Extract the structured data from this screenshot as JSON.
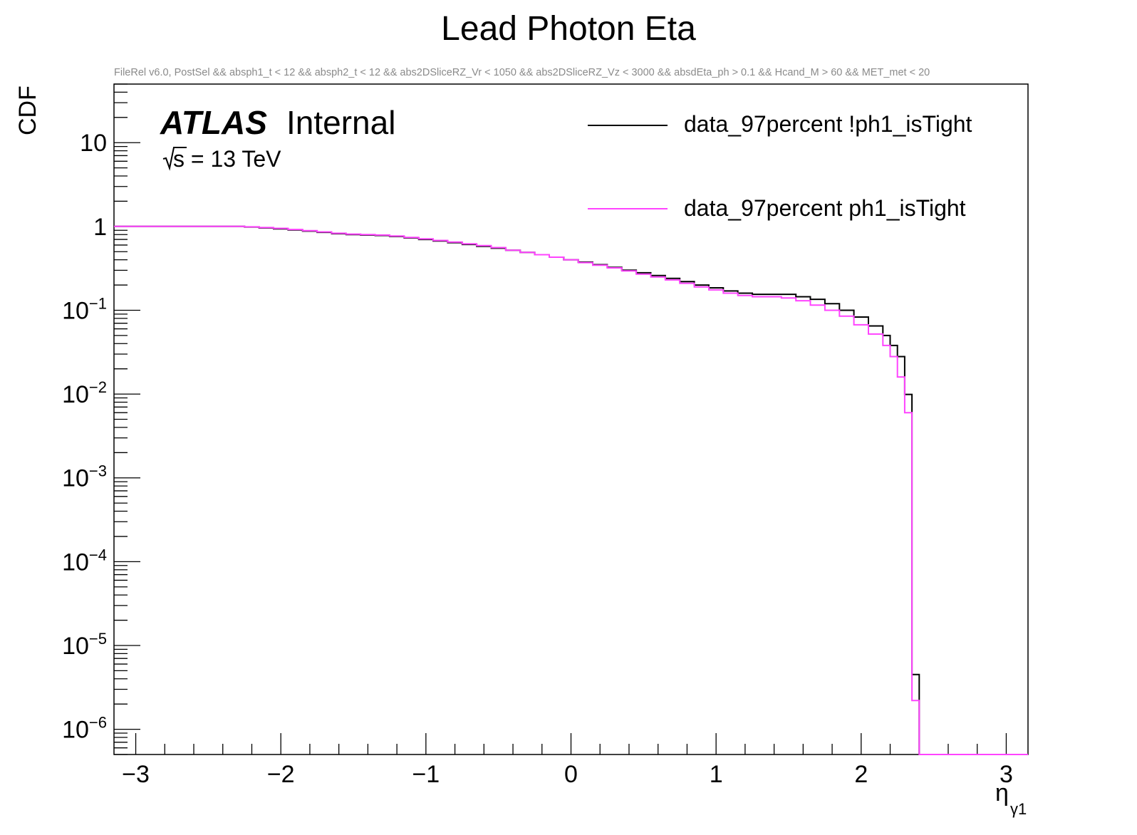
{
  "chart_data": {
    "type": "line",
    "title": "Lead Photon Eta",
    "subtitle": "FileRel v6.0, PostSel &&  absph1_t < 12 && absph2_t < 12 && abs2DSliceRZ_Vr < 1050 && abs2DSliceRZ_Vz < 3000 && absdEta_ph > 0.1 && Hcand_M > 60 && MET_met < 20",
    "xlabel": "η",
    "xlabel_sub": "γ1",
    "ylabel": "CDF",
    "xlim": [
      -3.15,
      3.15
    ],
    "ylim": [
      5e-07,
      50
    ],
    "yscale": "log",
    "x_ticks": [
      {
        "v": -3,
        "label": "−3"
      },
      {
        "v": -2,
        "label": "−2"
      },
      {
        "v": -1,
        "label": "−1"
      },
      {
        "v": 0,
        "label": "0"
      },
      {
        "v": 1,
        "label": "1"
      },
      {
        "v": 2,
        "label": "2"
      },
      {
        "v": 3,
        "label": "3"
      }
    ],
    "y_ticks": [
      {
        "v": 10,
        "base": "10",
        "exp": ""
      },
      {
        "v": 1,
        "base": "1",
        "exp": ""
      },
      {
        "v": 0.1,
        "base": "10",
        "exp": "−1"
      },
      {
        "v": 0.01,
        "base": "10",
        "exp": "−2"
      },
      {
        "v": 0.001,
        "base": "10",
        "exp": "−3"
      },
      {
        "v": 0.0001,
        "base": "10",
        "exp": "−4"
      },
      {
        "v": 1e-05,
        "base": "10",
        "exp": "−5"
      },
      {
        "v": 1e-06,
        "base": "10",
        "exp": "−6"
      }
    ],
    "grid": false,
    "legend_position": "top-right",
    "annotations": {
      "experiment": "ATLAS",
      "status": "Internal",
      "energy": "s = 13 TeV"
    },
    "bin_edges": [
      -3.15,
      -2.25,
      -2.15,
      -2.05,
      -1.95,
      -1.85,
      -1.75,
      -1.65,
      -1.55,
      -1.45,
      -1.35,
      -1.25,
      -1.15,
      -1.05,
      -0.95,
      -0.85,
      -0.75,
      -0.65,
      -0.55,
      -0.45,
      -0.35,
      -0.25,
      -0.15,
      -0.05,
      0.05,
      0.15,
      0.25,
      0.35,
      0.45,
      0.55,
      0.65,
      0.75,
      0.85,
      0.95,
      1.05,
      1.15,
      1.25,
      1.35,
      1.45,
      1.55,
      1.65,
      1.75,
      1.85,
      1.95,
      2.05,
      2.15,
      2.2,
      2.25,
      2.3,
      2.35,
      2.4,
      2.45,
      3.15
    ],
    "series": [
      {
        "name": "data_97percent !ph1_isTight",
        "color": "#000000",
        "values": [
          1.0,
          0.985,
          0.96,
          0.935,
          0.91,
          0.88,
          0.85,
          0.82,
          0.8,
          0.79,
          0.78,
          0.76,
          0.73,
          0.7,
          0.67,
          0.64,
          0.61,
          0.58,
          0.55,
          0.52,
          0.49,
          0.46,
          0.43,
          0.4,
          0.375,
          0.35,
          0.325,
          0.3,
          0.28,
          0.26,
          0.24,
          0.22,
          0.2,
          0.185,
          0.17,
          0.16,
          0.155,
          0.155,
          0.155,
          0.145,
          0.135,
          0.12,
          0.1,
          0.083,
          0.065,
          0.05,
          0.038,
          0.028,
          0.0099,
          4.5e-06,
          3e-07,
          3e-07
        ]
      },
      {
        "name": "data_97percent ph1_isTight",
        "color": "#ff44ff",
        "values": [
          1.0,
          0.99,
          0.97,
          0.95,
          0.92,
          0.89,
          0.86,
          0.83,
          0.81,
          0.8,
          0.79,
          0.77,
          0.74,
          0.71,
          0.68,
          0.65,
          0.62,
          0.59,
          0.56,
          0.52,
          0.49,
          0.46,
          0.43,
          0.4,
          0.37,
          0.345,
          0.32,
          0.295,
          0.27,
          0.25,
          0.23,
          0.21,
          0.19,
          0.175,
          0.16,
          0.15,
          0.145,
          0.145,
          0.14,
          0.13,
          0.115,
          0.1,
          0.085,
          0.067,
          0.052,
          0.038,
          0.028,
          0.016,
          0.006,
          2.2e-06,
          3e-07,
          3e-07
        ]
      }
    ]
  }
}
